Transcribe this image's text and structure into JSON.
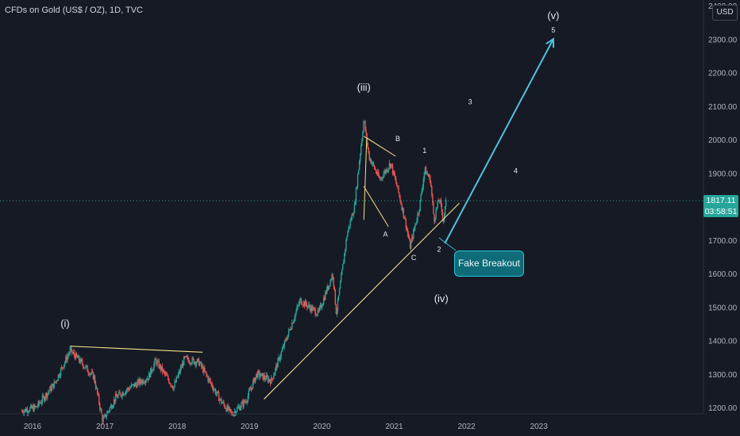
{
  "header": {
    "title": "CFDs on Gold (US$ / OZ), 1D, TVC",
    "currency": "USD"
  },
  "price_tag": {
    "price": "1817.11",
    "countdown": "03:58:51"
  },
  "annotations": {
    "callout": "Fake Breakout",
    "waves": [
      "(i)",
      "(iii)",
      "(iv)",
      "(v)",
      "A",
      "B",
      "C",
      "1",
      "2",
      "3",
      "4",
      "5"
    ]
  },
  "chart_data": {
    "type": "candlestick",
    "title": "CFDs on Gold (US$ / OZ), 1D, TVC",
    "y_ticks": [
      "1200.00",
      "1300.00",
      "1400.00",
      "1500.00",
      "1600.00",
      "1700.00",
      "1800.00",
      "1900.00",
      "2000.00",
      "2100.00",
      "2200.00",
      "2300.00",
      "2400.00"
    ],
    "x_ticks": [
      "2016",
      "2017",
      "2018",
      "2019",
      "2020",
      "2021",
      "2022",
      "2023"
    ],
    "ylim": [
      1170,
      2410
    ],
    "price_path": [
      [
        "2015.85",
        1190
      ],
      [
        "2016.05",
        1200
      ],
      [
        "2016.30",
        1270
      ],
      [
        "2016.52",
        1370
      ],
      [
        "2016.65",
        1340
      ],
      [
        "2016.85",
        1290
      ],
      [
        "2016.97",
        1160
      ],
      [
        "2017.15",
        1230
      ],
      [
        "2017.35",
        1260
      ],
      [
        "2017.60",
        1290
      ],
      [
        "2017.70",
        1340
      ],
      [
        "2017.95",
        1260
      ],
      [
        "2018.10",
        1345
      ],
      [
        "2018.30",
        1335
      ],
      [
        "2018.60",
        1220
      ],
      [
        "2018.75",
        1180
      ],
      [
        "2018.95",
        1220
      ],
      [
        "2019.10",
        1300
      ],
      [
        "2019.30",
        1280
      ],
      [
        "2019.50",
        1400
      ],
      [
        "2019.70",
        1520
      ],
      [
        "2019.95",
        1480
      ],
      [
        "2020.15",
        1600
      ],
      [
        "2020.20",
        1480
      ],
      [
        "2020.35",
        1720
      ],
      [
        "2020.45",
        1800
      ],
      [
        "2020.58",
        2060
      ],
      [
        "2020.65",
        1950
      ],
      [
        "2020.80",
        1880
      ],
      [
        "2020.95",
        1930
      ],
      [
        "2021.05",
        1850
      ],
      [
        "2021.15",
        1760
      ],
      [
        "2021.22",
        1680
      ],
      [
        "2021.35",
        1800
      ],
      [
        "2021.42",
        1910
      ],
      [
        "2021.50",
        1880
      ],
      [
        "2021.55",
        1760
      ],
      [
        "2021.62",
        1825
      ],
      [
        "2021.68",
        1760
      ],
      [
        "2021.72",
        1817
      ]
    ],
    "current_price": 1817.11,
    "trendlines": [
      {
        "name": "support",
        "from": [
          "2019.20",
          1225
        ],
        "to": [
          "2021.90",
          1810
        ]
      },
      {
        "name": "resistance",
        "from": [
          "2016.52",
          1383
        ],
        "to": [
          "2018.35",
          1365
        ]
      }
    ],
    "projection": {
      "from": [
        "2021.70",
        1690
      ],
      "to": [
        "2023.20",
        2300
      ]
    },
    "wave_labels": [
      {
        "label": "(i)",
        "x": "2016.45",
        "y": 1440
      },
      {
        "label": "(iii)",
        "x": "2020.58",
        "y": 2145
      },
      {
        "label": "(iv)",
        "x": "2021.65",
        "y": 1515
      },
      {
        "label": "(v)",
        "x": "2023.20",
        "y": 2360
      },
      {
        "label": "A",
        "x": "2020.88",
        "y": 1710
      },
      {
        "label": "B",
        "x": "2021.05",
        "y": 1995
      },
      {
        "label": "C",
        "x": "2021.27",
        "y": 1640
      },
      {
        "label": "1",
        "x": "2021.42",
        "y": 1960
      },
      {
        "label": "2",
        "x": "2021.62",
        "y": 1665
      },
      {
        "label": "3",
        "x": "2022.05",
        "y": 2105
      },
      {
        "label": "4",
        "x": "2022.68",
        "y": 1900
      },
      {
        "label": "5",
        "x": "2023.20",
        "y": 2320
      }
    ]
  }
}
